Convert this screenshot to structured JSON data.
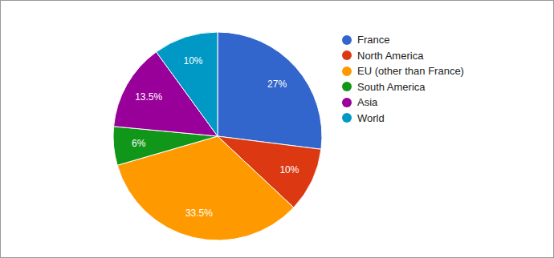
{
  "chart_data": {
    "type": "pie",
    "categories": [
      "France",
      "North America",
      "EU (other than France)",
      "South America",
      "Asia",
      "World"
    ],
    "values": [
      27,
      10,
      33.5,
      6,
      13.5,
      10
    ],
    "value_labels": [
      "27%",
      "10%",
      "33.5%",
      "6%",
      "13.5%",
      "10%"
    ],
    "colors": [
      "#3366cc",
      "#dc3912",
      "#ff9900",
      "#109618",
      "#990099",
      "#0099c6"
    ],
    "data_labels": true,
    "legend": "right"
  }
}
